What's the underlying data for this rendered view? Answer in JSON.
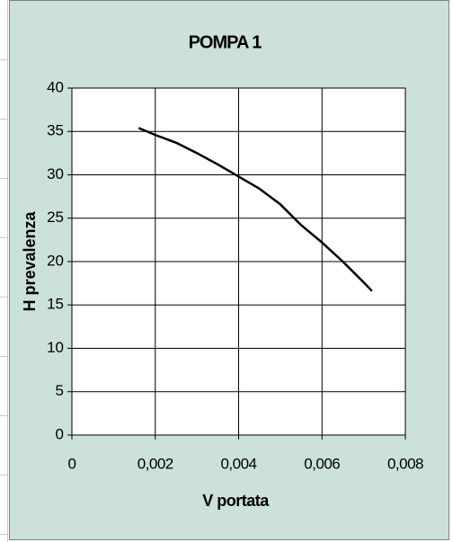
{
  "chart_data": {
    "type": "line",
    "title": "POMPA 1",
    "x_label": "V portata",
    "y_label": "H prevalenza",
    "x": [
      0.0016,
      0.002,
      0.0025,
      0.003,
      0.0035,
      0.004,
      0.0045,
      0.005,
      0.0055,
      0.006,
      0.0065,
      0.007,
      0.0072
    ],
    "series": [
      {
        "color": "#000000",
        "values": [
          35.4,
          34.6,
          33.7,
          32.5,
          31.2,
          29.8,
          28.4,
          26.6,
          24.2,
          22.2,
          20.0,
          17.6,
          16.6
        ]
      }
    ],
    "xlim": [
      0,
      0.008
    ],
    "xticks": [
      0,
      {
        "value": 0.002,
        "label": "0,002"
      },
      {
        "value": 0.004,
        "label": "0,004"
      },
      {
        "value": 0.006,
        "label": "0,006"
      },
      {
        "value": 0.008,
        "label": "0,008"
      }
    ],
    "ylim": [
      0,
      40
    ],
    "yticks": [
      0,
      5,
      10,
      15,
      20,
      25,
      30,
      35,
      40
    ],
    "grid": true
  }
}
